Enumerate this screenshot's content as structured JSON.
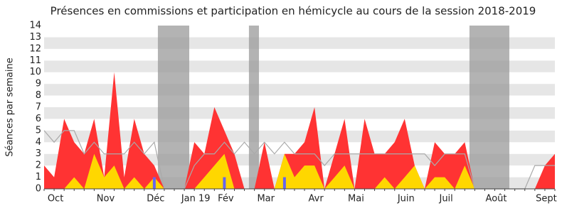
{
  "chart_data": {
    "type": "area",
    "title": "Présences en commissions et participation en hémicycle au cours de la session 2018-2019",
    "y_label": "Séances par semaine",
    "categories": [
      null,
      "Oct",
      null,
      null,
      null,
      null,
      "Nov",
      null,
      null,
      null,
      null,
      "Déc",
      null,
      null,
      null,
      "Jan 19",
      null,
      null,
      "Fév",
      null,
      null,
      null,
      "Mar",
      null,
      null,
      null,
      null,
      "Avr",
      null,
      null,
      null,
      "Mai",
      null,
      null,
      null,
      null,
      "Juin",
      null,
      null,
      null,
      "Juil",
      null,
      null,
      null,
      null,
      "Août",
      null,
      null,
      null,
      null,
      "Sept",
      null
    ],
    "series": [
      {
        "kind": "area",
        "color": "#ff3333",
        "values": [
          2,
          1,
          6,
          4,
          3,
          6,
          1,
          10,
          1,
          6,
          3,
          2,
          0,
          0,
          0,
          4,
          3,
          7,
          5,
          3,
          0,
          0,
          4,
          0,
          3,
          3,
          4,
          7,
          0,
          3,
          6,
          0,
          6,
          3,
          3,
          4,
          6,
          2,
          0,
          4,
          3,
          3,
          4,
          0,
          0,
          0,
          0,
          0,
          0,
          0,
          2,
          3
        ]
      },
      {
        "kind": "area",
        "color": "#ffd700",
        "values": [
          0,
          0,
          0,
          1,
          0,
          3,
          1,
          2,
          0,
          1,
          0,
          1,
          0,
          0,
          0,
          0,
          1,
          2,
          3,
          0,
          0,
          0,
          0,
          0,
          3,
          1,
          2,
          2,
          0,
          1,
          2,
          0,
          0,
          0,
          1,
          0,
          1,
          2,
          0,
          1,
          1,
          0,
          2,
          0,
          0,
          0,
          0,
          0,
          0,
          0,
          0,
          0
        ]
      },
      {
        "kind": "line",
        "color": "#aaaaaa",
        "values": [
          5,
          4,
          5,
          5,
          3,
          4,
          3,
          3,
          3,
          4,
          3,
          4,
          0,
          0,
          0,
          2,
          3,
          3,
          4,
          3,
          4,
          3,
          4,
          3,
          4,
          3,
          3,
          3,
          2,
          3,
          3,
          3,
          3,
          3,
          3,
          3,
          3,
          3,
          3,
          2,
          3,
          3,
          3,
          0,
          0,
          0,
          0,
          0,
          0,
          2,
          2,
          2
        ]
      },
      {
        "kind": "bar",
        "color": "#6666ee",
        "values": [
          0,
          0,
          0,
          0,
          0,
          0,
          0,
          0,
          0,
          0,
          0,
          1,
          0,
          0,
          0,
          0,
          0,
          0,
          1,
          0,
          0,
          0,
          0,
          0,
          1,
          0,
          0,
          0,
          0,
          0,
          0,
          0,
          0,
          0,
          0,
          0,
          0,
          0,
          0,
          0,
          0,
          0,
          0,
          0,
          0,
          0,
          0,
          0,
          0,
          0,
          0,
          0
        ]
      }
    ],
    "shaded_ranges": [
      [
        11.36,
        14.49
      ],
      [
        20.45,
        21.45
      ],
      [
        42.47,
        46.45
      ]
    ],
    "shade_color": "#999999",
    "ylim": [
      0,
      14
    ],
    "yticks": [
      0,
      1,
      2,
      3,
      4,
      5,
      6,
      7,
      8,
      9,
      10,
      11,
      12,
      13,
      14
    ],
    "grid": true
  }
}
